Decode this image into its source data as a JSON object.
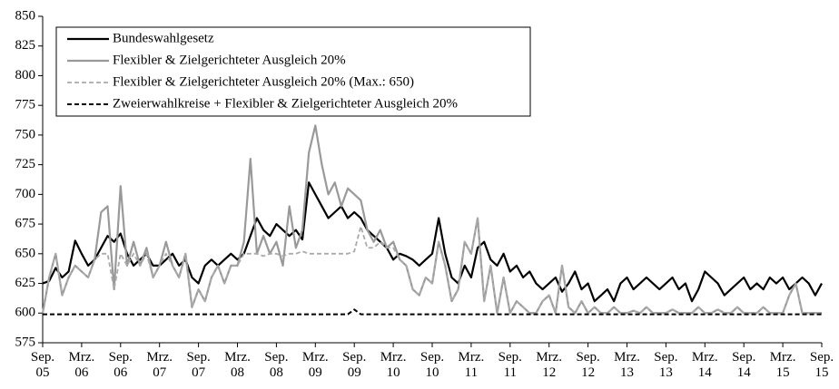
{
  "chart_data": {
    "type": "line",
    "categories": [
      "Sep.\n05",
      null,
      null,
      null,
      null,
      null,
      "Mrz.\n06",
      null,
      null,
      null,
      null,
      null,
      "Sep.\n06",
      null,
      null,
      null,
      null,
      null,
      "Mrz.\n07",
      null,
      null,
      null,
      null,
      null,
      "Sep.\n07",
      null,
      null,
      null,
      null,
      null,
      "Mrz.\n08",
      null,
      null,
      null,
      null,
      null,
      "Sep.\n08",
      null,
      null,
      null,
      null,
      null,
      "Mrz.\n09",
      null,
      null,
      null,
      null,
      null,
      "Sep.\n09",
      null,
      null,
      null,
      null,
      null,
      "Mrz.\n10",
      null,
      null,
      null,
      null,
      null,
      "Sep.\n10",
      null,
      null,
      null,
      null,
      null,
      "Mrz.\n11",
      null,
      null,
      null,
      null,
      null,
      "Sep.\n11",
      null,
      null,
      null,
      null,
      null,
      "Mrz.\n12",
      null,
      null,
      null,
      null,
      null,
      "Sep.\n12",
      null,
      null,
      null,
      null,
      null,
      "Mrz.\n13",
      null,
      null,
      null,
      null,
      null,
      "Sep.\n13",
      null,
      null,
      null,
      null,
      null,
      "Mrz.\n14",
      null,
      null,
      null,
      null,
      null,
      "Sep.\n14",
      null,
      null,
      null,
      null,
      null,
      "Mrz.\n15",
      null,
      null,
      null,
      null,
      null,
      "Sep.\n15"
    ],
    "series": [
      {
        "name": "Bundeswahlgesetz",
        "color": "#000000",
        "style": "solid",
        "width": 2.2,
        "values": [
          625,
          627,
          638,
          630,
          635,
          661,
          650,
          640,
          645,
          655,
          665,
          660,
          667,
          650,
          640,
          645,
          650,
          640,
          640,
          645,
          650,
          640,
          645,
          630,
          625,
          640,
          645,
          640,
          645,
          650,
          645,
          650,
          665,
          680,
          670,
          665,
          675,
          670,
          665,
          670,
          662,
          710,
          700,
          690,
          680,
          685,
          690,
          680,
          685,
          680,
          670,
          665,
          660,
          655,
          645,
          650,
          648,
          645,
          640,
          645,
          650,
          680,
          650,
          630,
          625,
          640,
          630,
          655,
          660,
          645,
          640,
          650,
          635,
          640,
          630,
          635,
          625,
          620,
          625,
          630,
          618,
          625,
          635,
          620,
          625,
          610,
          615,
          620,
          610,
          625,
          630,
          620,
          625,
          630,
          625,
          620,
          625,
          630,
          620,
          625,
          610,
          620,
          635,
          630,
          625,
          615,
          620,
          625,
          630,
          620,
          625,
          620,
          630,
          625,
          630,
          620,
          625,
          630,
          625,
          615,
          625
        ]
      },
      {
        "name": "Flexibler & Zielgerichteter Ausgleich 20%",
        "color": "#999999",
        "style": "solid",
        "width": 2.2,
        "values": [
          600,
          630,
          650,
          615,
          630,
          640,
          635,
          630,
          645,
          685,
          690,
          620,
          707,
          640,
          660,
          640,
          655,
          630,
          640,
          660,
          640,
          630,
          650,
          605,
          620,
          610,
          630,
          640,
          625,
          640,
          640,
          660,
          730,
          650,
          665,
          650,
          660,
          640,
          690,
          655,
          670,
          735,
          758,
          725,
          700,
          710,
          690,
          705,
          700,
          695,
          670,
          660,
          670,
          655,
          660,
          645,
          640,
          620,
          615,
          630,
          625,
          660,
          640,
          610,
          620,
          660,
          650,
          680,
          610,
          640,
          600,
          630,
          600,
          610,
          605,
          600,
          600,
          610,
          615,
          600,
          640,
          605,
          600,
          610,
          600,
          605,
          600,
          600,
          605,
          600,
          600,
          602,
          600,
          605,
          600,
          600,
          600,
          603,
          600,
          600,
          600,
          605,
          600,
          600,
          603,
          600,
          600,
          605,
          600,
          600,
          600,
          605,
          600,
          600,
          600,
          615,
          625,
          600,
          600,
          600,
          600
        ]
      },
      {
        "name": "Flexibler & Zielgerichteter Ausgleich 20% (Max.: 650)",
        "color": "#aaaaaa",
        "style": "dashed",
        "width": 1.8,
        "values": [
          600,
          630,
          650,
          615,
          630,
          640,
          635,
          630,
          645,
          650,
          650,
          620,
          650,
          640,
          650,
          640,
          650,
          630,
          640,
          650,
          640,
          630,
          650,
          605,
          620,
          610,
          630,
          640,
          625,
          640,
          640,
          650,
          650,
          650,
          648,
          650,
          650,
          648,
          650,
          650,
          652,
          650,
          650,
          650,
          650,
          650,
          650,
          650,
          652,
          673,
          655,
          655,
          660,
          655,
          655,
          645,
          640,
          620,
          615,
          630,
          625,
          660,
          640,
          610,
          620,
          660,
          650,
          680,
          610,
          640,
          600,
          630,
          600,
          610,
          605,
          600,
          600,
          610,
          615,
          600,
          640,
          605,
          600,
          610,
          600,
          605,
          600,
          600,
          605,
          600,
          600,
          602,
          600,
          605,
          600,
          600,
          600,
          603,
          600,
          600,
          600,
          605,
          600,
          600,
          603,
          600,
          600,
          605,
          600,
          600,
          600,
          605,
          600,
          600,
          600,
          615,
          625,
          600,
          600,
          600,
          600
        ]
      },
      {
        "name": "Zweierwahlkreise + Flexibler & Zielgerichteter Ausgleich 20%",
        "color": "#000000",
        "style": "dashed",
        "width": 2,
        "values": [
          599,
          599,
          599,
          599,
          599,
          599,
          599,
          599,
          599,
          599,
          599,
          599,
          599,
          599,
          599,
          599,
          599,
          599,
          599,
          599,
          599,
          599,
          599,
          599,
          599,
          599,
          599,
          599,
          599,
          599,
          599,
          599,
          599,
          599,
          599,
          599,
          599,
          599,
          599,
          599,
          599,
          599,
          599,
          599,
          599,
          599,
          599,
          599,
          603,
          599,
          599,
          599,
          599,
          599,
          599,
          599,
          599,
          599,
          599,
          599,
          599,
          599,
          599,
          599,
          599,
          599,
          599,
          599,
          599,
          599,
          599,
          599,
          599,
          599,
          599,
          599,
          599,
          599,
          599,
          599,
          599,
          599,
          599,
          599,
          599,
          599,
          599,
          599,
          599,
          599,
          599,
          599,
          599,
          599,
          599,
          599,
          599,
          599,
          599,
          599,
          599,
          599,
          599,
          599,
          599,
          599,
          599,
          599,
          599,
          599,
          599,
          599,
          599,
          599,
          599,
          599,
          599,
          599,
          599,
          599,
          599
        ]
      }
    ],
    "ylim": [
      575,
      850
    ],
    "yticks": [
      575,
      600,
      625,
      650,
      675,
      700,
      725,
      750,
      775,
      800,
      825,
      850
    ],
    "grid": false,
    "legend": "upper left"
  }
}
